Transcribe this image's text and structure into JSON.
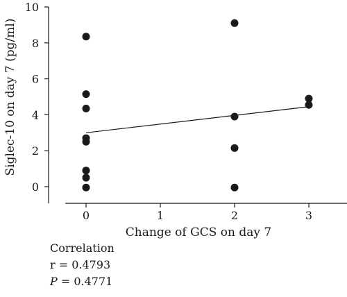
{
  "chart_data": {
    "type": "scatter",
    "title": "",
    "xlabel": "Change of GCS on day 7",
    "ylabel": "Siglec-10 on day 7 (pg/ml)",
    "xlim": [
      -0.5,
      3.5
    ],
    "ylim": [
      0,
      10
    ],
    "x_ticks": [
      "0",
      "1",
      "2",
      "3"
    ],
    "y_ticks": [
      "0",
      "2",
      "4",
      "6",
      "8",
      "10"
    ],
    "grid": false,
    "points": [
      {
        "x": 0,
        "y": 8.35
      },
      {
        "x": 0,
        "y": 5.15
      },
      {
        "x": 0,
        "y": 4.35
      },
      {
        "x": 0,
        "y": 2.7
      },
      {
        "x": 0,
        "y": 2.5
      },
      {
        "x": 0,
        "y": 0.9
      },
      {
        "x": 0,
        "y": 0.5
      },
      {
        "x": 0,
        "y": -0.05
      },
      {
        "x": 2,
        "y": 9.1
      },
      {
        "x": 2,
        "y": 3.9
      },
      {
        "x": 2,
        "y": 2.15
      },
      {
        "x": 2,
        "y": -0.05
      },
      {
        "x": 3,
        "y": 4.9
      },
      {
        "x": 3,
        "y": 4.55
      }
    ],
    "trendline": {
      "x": [
        0,
        3
      ],
      "y": [
        3.0,
        4.45
      ]
    }
  },
  "stats": {
    "heading": "Correlation",
    "r_line": "r = 0.4793",
    "p_label": "P",
    "p_value": " = 0.4771"
  }
}
